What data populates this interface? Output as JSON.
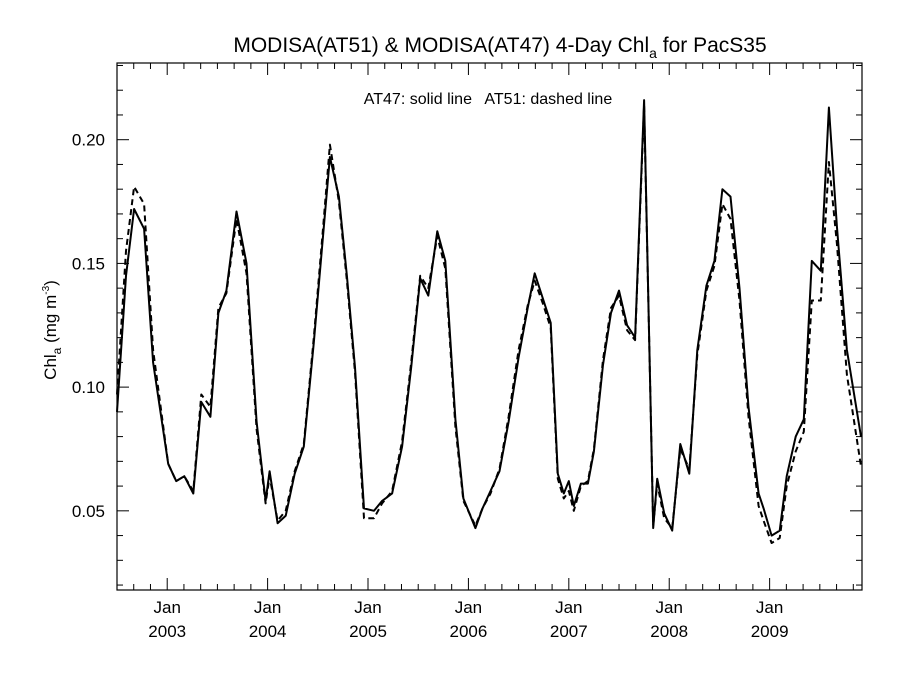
{
  "chart_data": {
    "type": "line",
    "title": "MODISA(AT51) & MODISA(AT47) 4-Day Chl",
    "title_subscript": "a",
    "title_suffix": " for PacS35",
    "annotation": "AT47: solid line   AT51: dashed line",
    "ylabel": "Chl",
    "ylabel_subscript": "a",
    "ylabel_units": " (mg m",
    "ylabel_units_sup": "-3",
    "ylabel_units_close": ")",
    "xlabel": "",
    "xlim": [
      2002.5,
      2009.92
    ],
    "ylim": [
      0.018,
      0.231
    ],
    "y_ticks": [
      0.05,
      0.1,
      0.15,
      0.2
    ],
    "y_tick_labels": [
      "0.05",
      "0.10",
      "0.15",
      "0.20"
    ],
    "x_ticks": [
      2003,
      2004,
      2005,
      2006,
      2007,
      2008,
      2009
    ],
    "x_tick_labels": [
      {
        "month": "Jan",
        "year": "2003"
      },
      {
        "month": "Jan",
        "year": "2004"
      },
      {
        "month": "Jan",
        "year": "2005"
      },
      {
        "month": "Jan",
        "year": "2006"
      },
      {
        "month": "Jan",
        "year": "2007"
      },
      {
        "month": "Jan",
        "year": "2008"
      },
      {
        "month": "Jan",
        "year": "2009"
      }
    ],
    "series": [
      {
        "name": "AT47",
        "style": "solid",
        "points": [
          [
            2002.5,
            0.09
          ],
          [
            2002.59,
            0.145
          ],
          [
            2002.67,
            0.172
          ],
          [
            2002.77,
            0.164
          ],
          [
            2002.86,
            0.11
          ],
          [
            2003.01,
            0.069
          ],
          [
            2003.09,
            0.062
          ],
          [
            2003.17,
            0.064
          ],
          [
            2003.26,
            0.057
          ],
          [
            2003.34,
            0.094
          ],
          [
            2003.43,
            0.088
          ],
          [
            2003.51,
            0.13
          ],
          [
            2003.59,
            0.139
          ],
          [
            2003.69,
            0.171
          ],
          [
            2003.79,
            0.15
          ],
          [
            2003.89,
            0.086
          ],
          [
            2003.98,
            0.054
          ],
          [
            2004.02,
            0.066
          ],
          [
            2004.1,
            0.045
          ],
          [
            2004.18,
            0.048
          ],
          [
            2004.27,
            0.065
          ],
          [
            2004.36,
            0.076
          ],
          [
            2004.46,
            0.118
          ],
          [
            2004.55,
            0.16
          ],
          [
            2004.62,
            0.193
          ],
          [
            2004.71,
            0.177
          ],
          [
            2004.79,
            0.145
          ],
          [
            2004.87,
            0.108
          ],
          [
            2004.96,
            0.051
          ],
          [
            2005.06,
            0.05
          ],
          [
            2005.14,
            0.054
          ],
          [
            2005.24,
            0.057
          ],
          [
            2005.34,
            0.076
          ],
          [
            2005.43,
            0.108
          ],
          [
            2005.52,
            0.144
          ],
          [
            2005.6,
            0.137
          ],
          [
            2005.69,
            0.163
          ],
          [
            2005.77,
            0.151
          ],
          [
            2005.87,
            0.087
          ],
          [
            2005.95,
            0.055
          ],
          [
            2006.07,
            0.043
          ],
          [
            2006.14,
            0.051
          ],
          [
            2006.22,
            0.058
          ],
          [
            2006.31,
            0.066
          ],
          [
            2006.4,
            0.086
          ],
          [
            2006.5,
            0.112
          ],
          [
            2006.59,
            0.132
          ],
          [
            2006.66,
            0.146
          ],
          [
            2006.74,
            0.136
          ],
          [
            2006.82,
            0.126
          ],
          [
            2006.89,
            0.065
          ],
          [
            2006.95,
            0.057
          ],
          [
            2007.0,
            0.062
          ],
          [
            2007.05,
            0.052
          ],
          [
            2007.12,
            0.061
          ],
          [
            2007.19,
            0.061
          ],
          [
            2007.25,
            0.074
          ],
          [
            2007.34,
            0.109
          ],
          [
            2007.42,
            0.13
          ],
          [
            2007.5,
            0.139
          ],
          [
            2007.58,
            0.125
          ],
          [
            2007.66,
            0.12
          ],
          [
            2007.75,
            0.216
          ],
          [
            2007.84,
            0.043
          ],
          [
            2007.88,
            0.063
          ],
          [
            2007.95,
            0.049
          ],
          [
            2008.03,
            0.042
          ],
          [
            2008.11,
            0.077
          ],
          [
            2008.2,
            0.065
          ],
          [
            2008.28,
            0.115
          ],
          [
            2008.37,
            0.141
          ],
          [
            2008.45,
            0.151
          ],
          [
            2008.53,
            0.18
          ],
          [
            2008.61,
            0.177
          ],
          [
            2008.7,
            0.14
          ],
          [
            2008.79,
            0.092
          ],
          [
            2008.89,
            0.057
          ],
          [
            2008.94,
            0.051
          ],
          [
            2009.02,
            0.04
          ],
          [
            2009.1,
            0.042
          ],
          [
            2009.17,
            0.064
          ],
          [
            2009.26,
            0.08
          ],
          [
            2009.34,
            0.087
          ],
          [
            2009.42,
            0.151
          ],
          [
            2009.51,
            0.147
          ],
          [
            2009.59,
            0.213
          ],
          [
            2009.67,
            0.165
          ],
          [
            2009.77,
            0.115
          ],
          [
            2009.91,
            0.08
          ]
        ]
      },
      {
        "name": "AT51",
        "style": "dashed",
        "points": [
          [
            2002.5,
            0.097
          ],
          [
            2002.59,
            0.155
          ],
          [
            2002.67,
            0.181
          ],
          [
            2002.77,
            0.174
          ],
          [
            2002.86,
            0.115
          ],
          [
            2003.01,
            0.069
          ],
          [
            2003.09,
            0.062
          ],
          [
            2003.17,
            0.064
          ],
          [
            2003.26,
            0.058
          ],
          [
            2003.34,
            0.097
          ],
          [
            2003.43,
            0.092
          ],
          [
            2003.51,
            0.132
          ],
          [
            2003.59,
            0.138
          ],
          [
            2003.69,
            0.168
          ],
          [
            2003.79,
            0.146
          ],
          [
            2003.89,
            0.083
          ],
          [
            2003.98,
            0.053
          ],
          [
            2004.02,
            0.064
          ],
          [
            2004.1,
            0.046
          ],
          [
            2004.18,
            0.05
          ],
          [
            2004.27,
            0.066
          ],
          [
            2004.36,
            0.077
          ],
          [
            2004.46,
            0.12
          ],
          [
            2004.55,
            0.163
          ],
          [
            2004.62,
            0.198
          ],
          [
            2004.71,
            0.175
          ],
          [
            2004.79,
            0.143
          ],
          [
            2004.87,
            0.106
          ],
          [
            2004.96,
            0.047
          ],
          [
            2005.06,
            0.047
          ],
          [
            2005.14,
            0.053
          ],
          [
            2005.24,
            0.058
          ],
          [
            2005.34,
            0.078
          ],
          [
            2005.43,
            0.11
          ],
          [
            2005.52,
            0.145
          ],
          [
            2005.6,
            0.14
          ],
          [
            2005.69,
            0.161
          ],
          [
            2005.77,
            0.148
          ],
          [
            2005.87,
            0.084
          ],
          [
            2005.95,
            0.054
          ],
          [
            2006.07,
            0.044
          ],
          [
            2006.14,
            0.051
          ],
          [
            2006.22,
            0.057
          ],
          [
            2006.31,
            0.067
          ],
          [
            2006.4,
            0.088
          ],
          [
            2006.5,
            0.115
          ],
          [
            2006.59,
            0.133
          ],
          [
            2006.66,
            0.143
          ],
          [
            2006.74,
            0.134
          ],
          [
            2006.82,
            0.124
          ],
          [
            2006.89,
            0.063
          ],
          [
            2006.95,
            0.055
          ],
          [
            2007.0,
            0.058
          ],
          [
            2007.05,
            0.05
          ],
          [
            2007.12,
            0.06
          ],
          [
            2007.19,
            0.062
          ],
          [
            2007.25,
            0.075
          ],
          [
            2007.34,
            0.111
          ],
          [
            2007.42,
            0.132
          ],
          [
            2007.5,
            0.137
          ],
          [
            2007.58,
            0.123
          ],
          [
            2007.66,
            0.119
          ],
          [
            2007.75,
            0.214
          ],
          [
            2007.84,
            0.044
          ],
          [
            2007.88,
            0.061
          ],
          [
            2007.95,
            0.047
          ],
          [
            2008.03,
            0.043
          ],
          [
            2008.11,
            0.075
          ],
          [
            2008.2,
            0.067
          ],
          [
            2008.28,
            0.113
          ],
          [
            2008.37,
            0.139
          ],
          [
            2008.45,
            0.149
          ],
          [
            2008.53,
            0.174
          ],
          [
            2008.61,
            0.168
          ],
          [
            2008.7,
            0.135
          ],
          [
            2008.79,
            0.088
          ],
          [
            2008.89,
            0.052
          ],
          [
            2008.94,
            0.046
          ],
          [
            2009.02,
            0.037
          ],
          [
            2009.1,
            0.039
          ],
          [
            2009.17,
            0.06
          ],
          [
            2009.26,
            0.074
          ],
          [
            2009.34,
            0.082
          ],
          [
            2009.42,
            0.135
          ],
          [
            2009.51,
            0.135
          ],
          [
            2009.59,
            0.191
          ],
          [
            2009.67,
            0.158
          ],
          [
            2009.77,
            0.105
          ],
          [
            2009.91,
            0.068
          ]
        ]
      }
    ],
    "colors": {
      "line": "#000000",
      "axis": "#000000",
      "background": "#ffffff"
    },
    "grid": false
  }
}
